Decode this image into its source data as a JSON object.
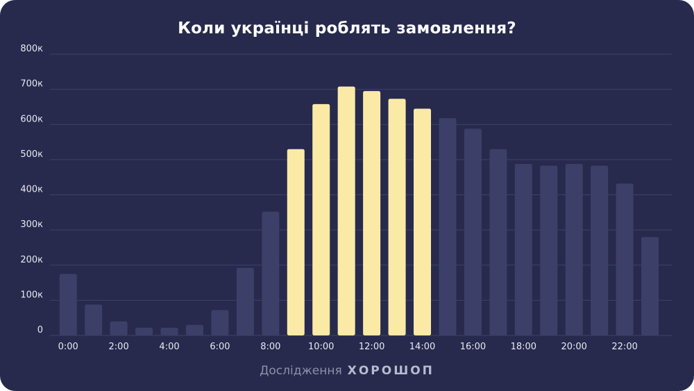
{
  "chart_data": {
    "type": "bar",
    "title": "Коли українці роблять замовлення?",
    "categories": [
      "0:00",
      "1:00",
      "2:00",
      "3:00",
      "4:00",
      "5:00",
      "6:00",
      "7:00",
      "8:00",
      "9:00",
      "10:00",
      "11:00",
      "12:00",
      "13:00",
      "14:00",
      "15:00",
      "16:00",
      "17:00",
      "18:00",
      "19:00",
      "20:00",
      "21:00",
      "22:00",
      "23:00"
    ],
    "x_tick_labels": [
      "0:00",
      "2:00",
      "4:00",
      "6:00",
      "8:00",
      "10:00",
      "12:00",
      "14:00",
      "16:00",
      "18:00",
      "20:00",
      "22:00"
    ],
    "values": [
      175000,
      88000,
      40000,
      22000,
      22000,
      30000,
      72000,
      192000,
      352000,
      530000,
      658000,
      708000,
      695000,
      673000,
      645000,
      618000,
      588000,
      530000,
      488000,
      483000,
      488000,
      483000,
      432000,
      280000
    ],
    "highlighted_range": [
      "9:00",
      "14:00"
    ],
    "y_tick_labels": [
      "0",
      "100к",
      "200к",
      "300к",
      "400к",
      "500к",
      "600к",
      "700к",
      "800к"
    ],
    "ylim": [
      0,
      800000
    ],
    "grid": true,
    "colors": {
      "background": "#272a4d",
      "bar_default": "#3c3f68",
      "bar_highlight": "#fbeaa6",
      "grid": "#3f4268"
    }
  },
  "footer": {
    "source_label": "Дослідження",
    "brand": "ХОРОШОП"
  }
}
